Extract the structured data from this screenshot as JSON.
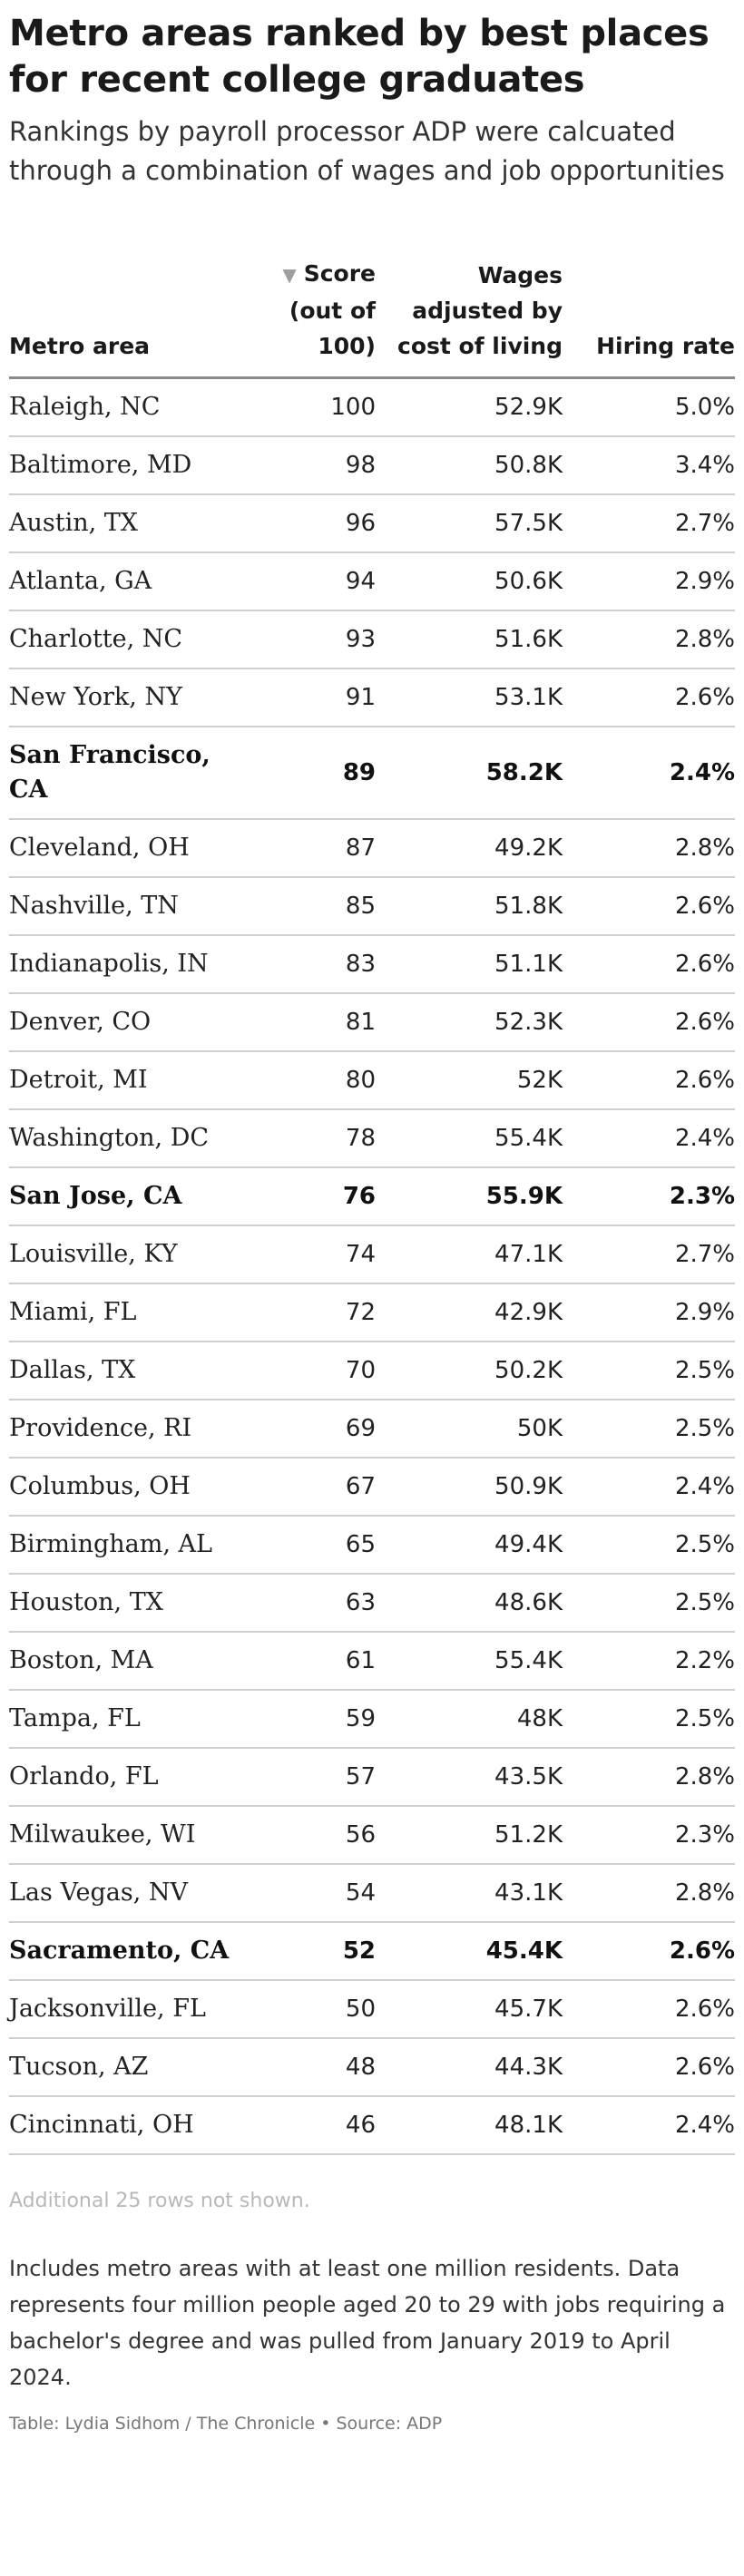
{
  "header": {
    "title": "Metro areas ranked by best places for recent college graduates",
    "subtitle": "Rankings by payroll processor ADP were calcuated through a combination of wages and job opportunities"
  },
  "table": {
    "columns": {
      "metro": "Metro area",
      "score": "Score (out of 100)",
      "wages": "Wages adjusted by cost of living",
      "hiring": "Hiring rate"
    },
    "sort_indicator": "▼",
    "rows": [
      {
        "metro": "Raleigh, NC",
        "score": "100",
        "wages": "52.9K",
        "hiring": "5.0%",
        "bold": false
      },
      {
        "metro": "Baltimore, MD",
        "score": "98",
        "wages": "50.8K",
        "hiring": "3.4%",
        "bold": false
      },
      {
        "metro": "Austin, TX",
        "score": "96",
        "wages": "57.5K",
        "hiring": "2.7%",
        "bold": false
      },
      {
        "metro": "Atlanta, GA",
        "score": "94",
        "wages": "50.6K",
        "hiring": "2.9%",
        "bold": false
      },
      {
        "metro": "Charlotte, NC",
        "score": "93",
        "wages": "51.6K",
        "hiring": "2.8%",
        "bold": false
      },
      {
        "metro": "New York, NY",
        "score": "91",
        "wages": "53.1K",
        "hiring": "2.6%",
        "bold": false
      },
      {
        "metro": "San Francisco, CA",
        "score": "89",
        "wages": "58.2K",
        "hiring": "2.4%",
        "bold": true
      },
      {
        "metro": "Cleveland, OH",
        "score": "87",
        "wages": "49.2K",
        "hiring": "2.8%",
        "bold": false
      },
      {
        "metro": "Nashville, TN",
        "score": "85",
        "wages": "51.8K",
        "hiring": "2.6%",
        "bold": false
      },
      {
        "metro": "Indianapolis, IN",
        "score": "83",
        "wages": "51.1K",
        "hiring": "2.6%",
        "bold": false
      },
      {
        "metro": "Denver, CO",
        "score": "81",
        "wages": "52.3K",
        "hiring": "2.6%",
        "bold": false
      },
      {
        "metro": "Detroit, MI",
        "score": "80",
        "wages": "52K",
        "hiring": "2.6%",
        "bold": false
      },
      {
        "metro": "Washington, DC",
        "score": "78",
        "wages": "55.4K",
        "hiring": "2.4%",
        "bold": false
      },
      {
        "metro": "San Jose, CA",
        "score": "76",
        "wages": "55.9K",
        "hiring": "2.3%",
        "bold": true
      },
      {
        "metro": "Louisville, KY",
        "score": "74",
        "wages": "47.1K",
        "hiring": "2.7%",
        "bold": false
      },
      {
        "metro": "Miami, FL",
        "score": "72",
        "wages": "42.9K",
        "hiring": "2.9%",
        "bold": false
      },
      {
        "metro": "Dallas, TX",
        "score": "70",
        "wages": "50.2K",
        "hiring": "2.5%",
        "bold": false
      },
      {
        "metro": "Providence, RI",
        "score": "69",
        "wages": "50K",
        "hiring": "2.5%",
        "bold": false
      },
      {
        "metro": "Columbus, OH",
        "score": "67",
        "wages": "50.9K",
        "hiring": "2.4%",
        "bold": false
      },
      {
        "metro": "Birmingham, AL",
        "score": "65",
        "wages": "49.4K",
        "hiring": "2.5%",
        "bold": false
      },
      {
        "metro": "Houston, TX",
        "score": "63",
        "wages": "48.6K",
        "hiring": "2.5%",
        "bold": false
      },
      {
        "metro": "Boston, MA",
        "score": "61",
        "wages": "55.4K",
        "hiring": "2.2%",
        "bold": false
      },
      {
        "metro": "Tampa, FL",
        "score": "59",
        "wages": "48K",
        "hiring": "2.5%",
        "bold": false
      },
      {
        "metro": "Orlando, FL",
        "score": "57",
        "wages": "43.5K",
        "hiring": "2.8%",
        "bold": false
      },
      {
        "metro": "Milwaukee, WI",
        "score": "56",
        "wages": "51.2K",
        "hiring": "2.3%",
        "bold": false
      },
      {
        "metro": "Las Vegas, NV",
        "score": "54",
        "wages": "43.1K",
        "hiring": "2.8%",
        "bold": false
      },
      {
        "metro": "Sacramento, CA",
        "score": "52",
        "wages": "45.4K",
        "hiring": "2.6%",
        "bold": true
      },
      {
        "metro": "Jacksonville, FL",
        "score": "50",
        "wages": "45.7K",
        "hiring": "2.6%",
        "bold": false
      },
      {
        "metro": "Tucson, AZ",
        "score": "48",
        "wages": "44.3K",
        "hiring": "2.6%",
        "bold": false
      },
      {
        "metro": "Cincinnati, OH",
        "score": "46",
        "wages": "48.1K",
        "hiring": "2.4%",
        "bold": false
      }
    ]
  },
  "footer": {
    "more_rows": "Additional 25 rows not shown.",
    "note": "Includes metro areas with at least one million residents. Data represents four million people aged 20 to 29 with jobs requiring a bachelor's degree and was pulled from January 2019 to April 2024.",
    "credit": "Table: Lydia Sidhom / The Chronicle • Source: ADP"
  }
}
